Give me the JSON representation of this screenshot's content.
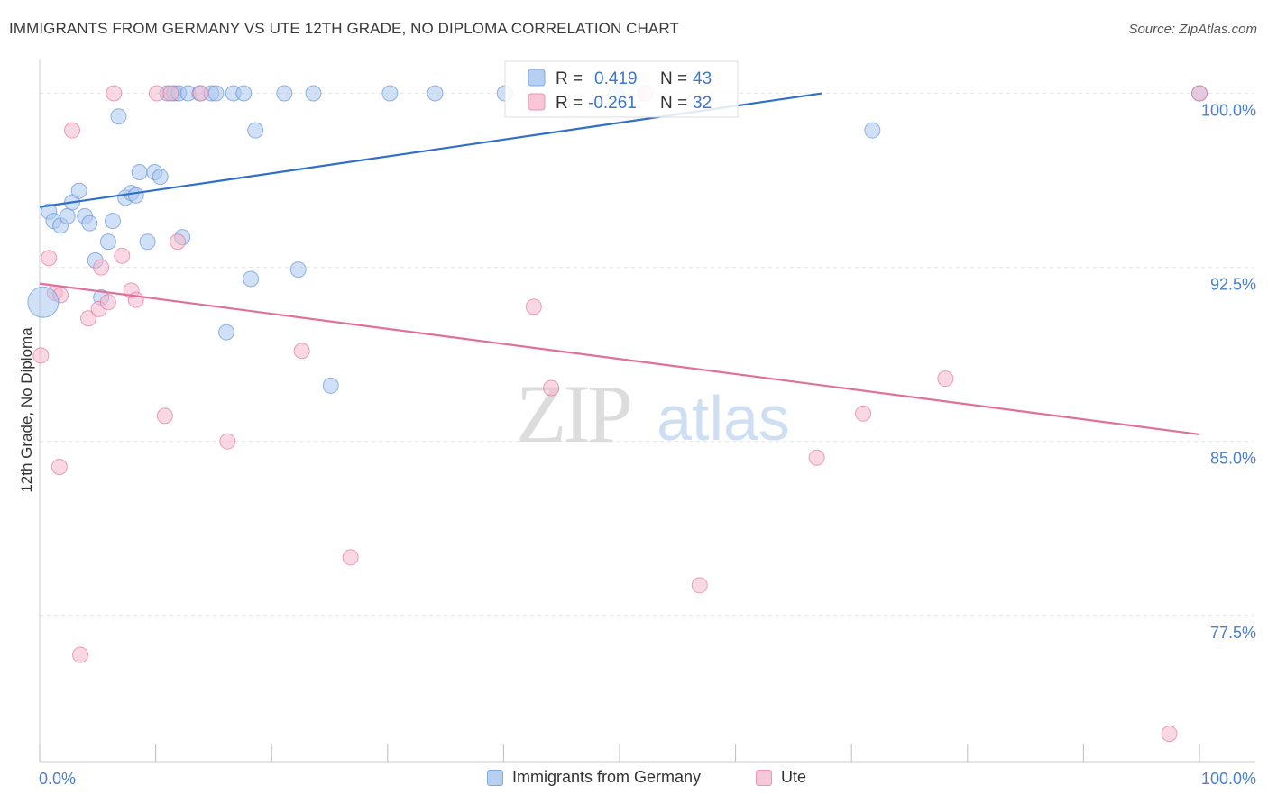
{
  "title": "IMMIGRANTS FROM GERMANY VS UTE 12TH GRADE, NO DIPLOMA CORRELATION CHART",
  "source": "Source: ZipAtlas.com",
  "watermark": {
    "zip": "ZIP",
    "atlas": "atlas"
  },
  "legend_stats": [
    {
      "r_label": "R =",
      "r_value": "0.419",
      "n_label": "N =",
      "n_value": "43"
    },
    {
      "r_label": "R =",
      "r_value": "-0.261",
      "n_label": "N =",
      "n_value": "32"
    }
  ],
  "chart_data": {
    "type": "scatter",
    "title": "IMMIGRANTS FROM GERMANY VS UTE 12TH GRADE, NO DIPLOMA CORRELATION CHART",
    "xlabel": "",
    "ylabel": "12th Grade, No Diploma",
    "xlim": [
      0,
      100
    ],
    "ylim": [
      71.2,
      101.3
    ],
    "x_tick_labels": [
      "0.0%",
      "100.0%"
    ],
    "y_ticks": [
      77.5,
      85.0,
      92.5,
      100.0
    ],
    "y_tick_labels": [
      "77.5%",
      "85.0%",
      "92.5%",
      "100.0%"
    ],
    "grid": true,
    "legend_position": "bottom",
    "series": [
      {
        "name": "Immigrants from Germany",
        "color": "#5b8fd6",
        "fill": "#a9c7ef",
        "trend": {
          "x": [
            0.0,
            67.5
          ],
          "y": [
            95.1,
            100.0
          ]
        },
        "points": [
          [
            0.8,
            94.9
          ],
          [
            1.2,
            94.5
          ],
          [
            1.8,
            94.3
          ],
          [
            2.4,
            94.7
          ],
          [
            2.8,
            95.3
          ],
          [
            3.4,
            95.8
          ],
          [
            3.9,
            94.7
          ],
          [
            4.3,
            94.4
          ],
          [
            4.8,
            92.8
          ],
          [
            5.3,
            91.2
          ],
          [
            5.9,
            93.6
          ],
          [
            6.3,
            94.5
          ],
          [
            6.8,
            99.0
          ],
          [
            7.4,
            95.5
          ],
          [
            7.9,
            95.7
          ],
          [
            8.3,
            95.6
          ],
          [
            8.6,
            96.6
          ],
          [
            9.3,
            93.6
          ],
          [
            9.9,
            96.6
          ],
          [
            10.4,
            96.4
          ],
          [
            11.0,
            100.0
          ],
          [
            11.6,
            100.0
          ],
          [
            12.0,
            100.0
          ],
          [
            12.3,
            93.8
          ],
          [
            12.8,
            100.0
          ],
          [
            13.8,
            100.0
          ],
          [
            14.8,
            100.0
          ],
          [
            15.2,
            100.0
          ],
          [
            16.1,
            89.7
          ],
          [
            16.7,
            100.0
          ],
          [
            17.6,
            100.0
          ],
          [
            18.2,
            92.0
          ],
          [
            18.6,
            98.4
          ],
          [
            21.1,
            100.0
          ],
          [
            22.3,
            92.4
          ],
          [
            23.6,
            100.0
          ],
          [
            25.1,
            87.4
          ],
          [
            30.2,
            100.0
          ],
          [
            34.1,
            100.0
          ],
          [
            40.1,
            100.0
          ],
          [
            49.7,
            100.0
          ],
          [
            71.8,
            98.4
          ],
          [
            100.0,
            100.0
          ]
        ]
      },
      {
        "name": "Ute",
        "color": "#e0709a",
        "fill": "#f5b8cc",
        "trend": {
          "x": [
            0.0,
            100.0
          ],
          "y": [
            91.8,
            85.3
          ]
        },
        "points": [
          [
            0.1,
            88.7
          ],
          [
            0.8,
            92.9
          ],
          [
            1.3,
            91.4
          ],
          [
            1.7,
            83.9
          ],
          [
            1.8,
            91.3
          ],
          [
            2.8,
            98.4
          ],
          [
            3.5,
            75.8
          ],
          [
            4.2,
            90.3
          ],
          [
            5.1,
            90.7
          ],
          [
            5.3,
            92.5
          ],
          [
            5.9,
            91.0
          ],
          [
            6.4,
            100.0
          ],
          [
            7.1,
            93.0
          ],
          [
            7.9,
            91.5
          ],
          [
            8.3,
            91.1
          ],
          [
            10.1,
            100.0
          ],
          [
            10.8,
            86.1
          ],
          [
            11.3,
            100.0
          ],
          [
            11.9,
            93.6
          ],
          [
            13.9,
            100.0
          ],
          [
            16.2,
            85.0
          ],
          [
            22.6,
            88.9
          ],
          [
            26.8,
            80.0
          ],
          [
            42.6,
            90.8
          ],
          [
            44.1,
            87.3
          ],
          [
            52.2,
            100.0
          ],
          [
            56.9,
            78.8
          ],
          [
            67.0,
            84.3
          ],
          [
            71.0,
            86.2
          ],
          [
            78.1,
            87.7
          ],
          [
            97.4,
            72.4
          ],
          [
            100.0,
            100.0
          ]
        ]
      }
    ]
  }
}
